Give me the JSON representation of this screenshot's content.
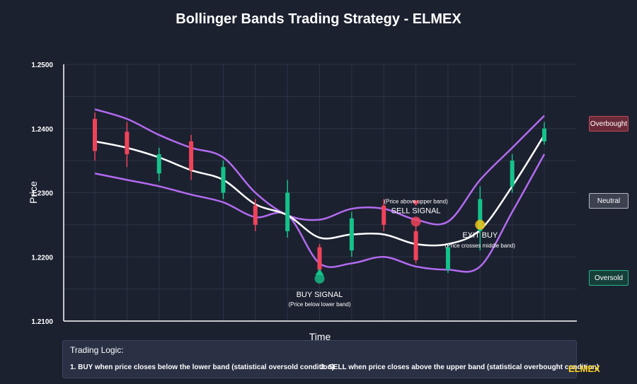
{
  "title": "Bollinger Bands Trading Strategy - ELMEX",
  "chart_data": {
    "type": "candlestick",
    "xlabel": "Time",
    "ylabel": "Price",
    "ylim": [
      1.21,
      1.25
    ],
    "yticks": [
      "1.2100",
      "1.2200",
      "1.2300",
      "1.2400",
      "1.2500"
    ],
    "grid": true,
    "colors": {
      "up": "#15c28a",
      "down": "#f0435a",
      "bands": "#b36bf0",
      "middle": "#ffffff",
      "grid": "#2d3445"
    },
    "candles": [
      {
        "open": 1.2415,
        "close": 1.2365,
        "high": 1.2425,
        "low": 1.235
      },
      {
        "open": 1.2395,
        "close": 1.236,
        "high": 1.241,
        "low": 1.234
      },
      {
        "open": 1.233,
        "close": 1.236,
        "high": 1.237,
        "low": 1.2318
      },
      {
        "open": 1.238,
        "close": 1.2335,
        "high": 1.239,
        "low": 1.232
      },
      {
        "open": 1.23,
        "close": 1.234,
        "high": 1.235,
        "low": 1.229
      },
      {
        "open": 1.228,
        "close": 1.225,
        "high": 1.229,
        "low": 1.224
      },
      {
        "open": 1.224,
        "close": 1.23,
        "high": 1.232,
        "low": 1.223
      },
      {
        "open": 1.2215,
        "close": 1.218,
        "high": 1.222,
        "low": 1.2175
      },
      {
        "open": 1.221,
        "close": 1.226,
        "high": 1.227,
        "low": 1.22
      },
      {
        "open": 1.228,
        "close": 1.225,
        "high": 1.229,
        "low": 1.224
      },
      {
        "open": 1.224,
        "close": 1.2195,
        "high": 1.225,
        "low": 1.219
      },
      {
        "open": 1.218,
        "close": 1.2215,
        "high": 1.222,
        "low": 1.2175
      },
      {
        "open": 1.224,
        "close": 1.229,
        "high": 1.231,
        "low": 1.221
      },
      {
        "open": 1.231,
        "close": 1.235,
        "high": 1.236,
        "low": 1.23
      },
      {
        "open": 1.238,
        "close": 1.24,
        "high": 1.241,
        "low": 1.2375
      }
    ],
    "upper_band": [
      1.243,
      1.2415,
      1.239,
      1.237,
      1.2355,
      1.23,
      1.2265,
      1.2258,
      1.2275,
      1.2275,
      1.2258,
      1.2255,
      1.232,
      1.237,
      1.242
    ],
    "middle_band": [
      1.238,
      1.237,
      1.2355,
      1.2335,
      1.232,
      1.2282,
      1.2265,
      1.223,
      1.2235,
      1.2235,
      1.222,
      1.222,
      1.2242,
      1.231,
      1.239
    ],
    "lower_band": [
      1.233,
      1.232,
      1.231,
      1.2297,
      1.2285,
      1.2262,
      1.2265,
      1.219,
      1.219,
      1.22,
      1.2185,
      1.218,
      1.2185,
      1.227,
      1.236
    ],
    "annotations": [
      {
        "label": "BUY SIGNAL",
        "note": "(Price below lower band)",
        "index": 7,
        "price": 1.2175,
        "color": "#15c28a"
      },
      {
        "label": "SELL SIGNAL",
        "note": "(Price above upper band)",
        "index": 10,
        "price": 1.2255,
        "color": "#f0435a"
      },
      {
        "label": "EXIT BUY",
        "note": "(Price crosses middle band)",
        "index": 12,
        "price": 1.225,
        "color": "#f0c419"
      }
    ]
  },
  "zones": {
    "overbought": "Overbought",
    "neutral": "Neutral",
    "oversold": "Oversold"
  },
  "logic": {
    "title": "Trading Logic:",
    "rule1": "1. BUY when price closes below the lower band (statistical oversold condition)",
    "rule2": "2. SELL when price closes above the upper band (statistical overbought condition)"
  },
  "brand": "ELMEX"
}
